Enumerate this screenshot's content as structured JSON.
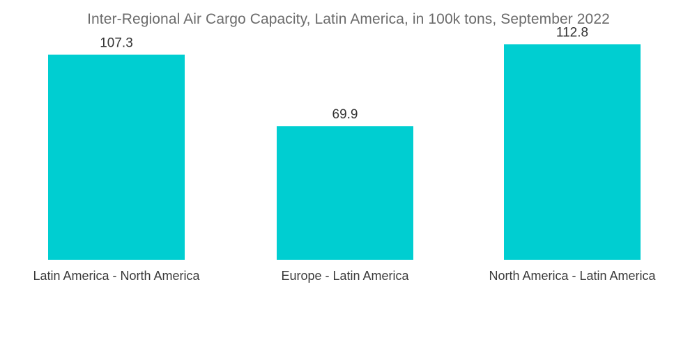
{
  "colors": {
    "bar": "#00ced1",
    "title": "#6b6b6b",
    "text": "#333333",
    "background": "#ffffff"
  },
  "chart_data": {
    "type": "bar",
    "title": "Inter-Regional Air Cargo Capacity, Latin America, in 100k tons, September 2022",
    "xlabel": "",
    "ylabel": "",
    "ylim": [
      0,
      125
    ],
    "grid": false,
    "legend": "none",
    "categories": [
      "Latin America - North America",
      "Europe - Latin America",
      "North America - Latin America"
    ],
    "values": [
      107.3,
      69.9,
      112.8
    ],
    "value_labels": [
      "107.3",
      "69.9",
      "112.8"
    ]
  }
}
